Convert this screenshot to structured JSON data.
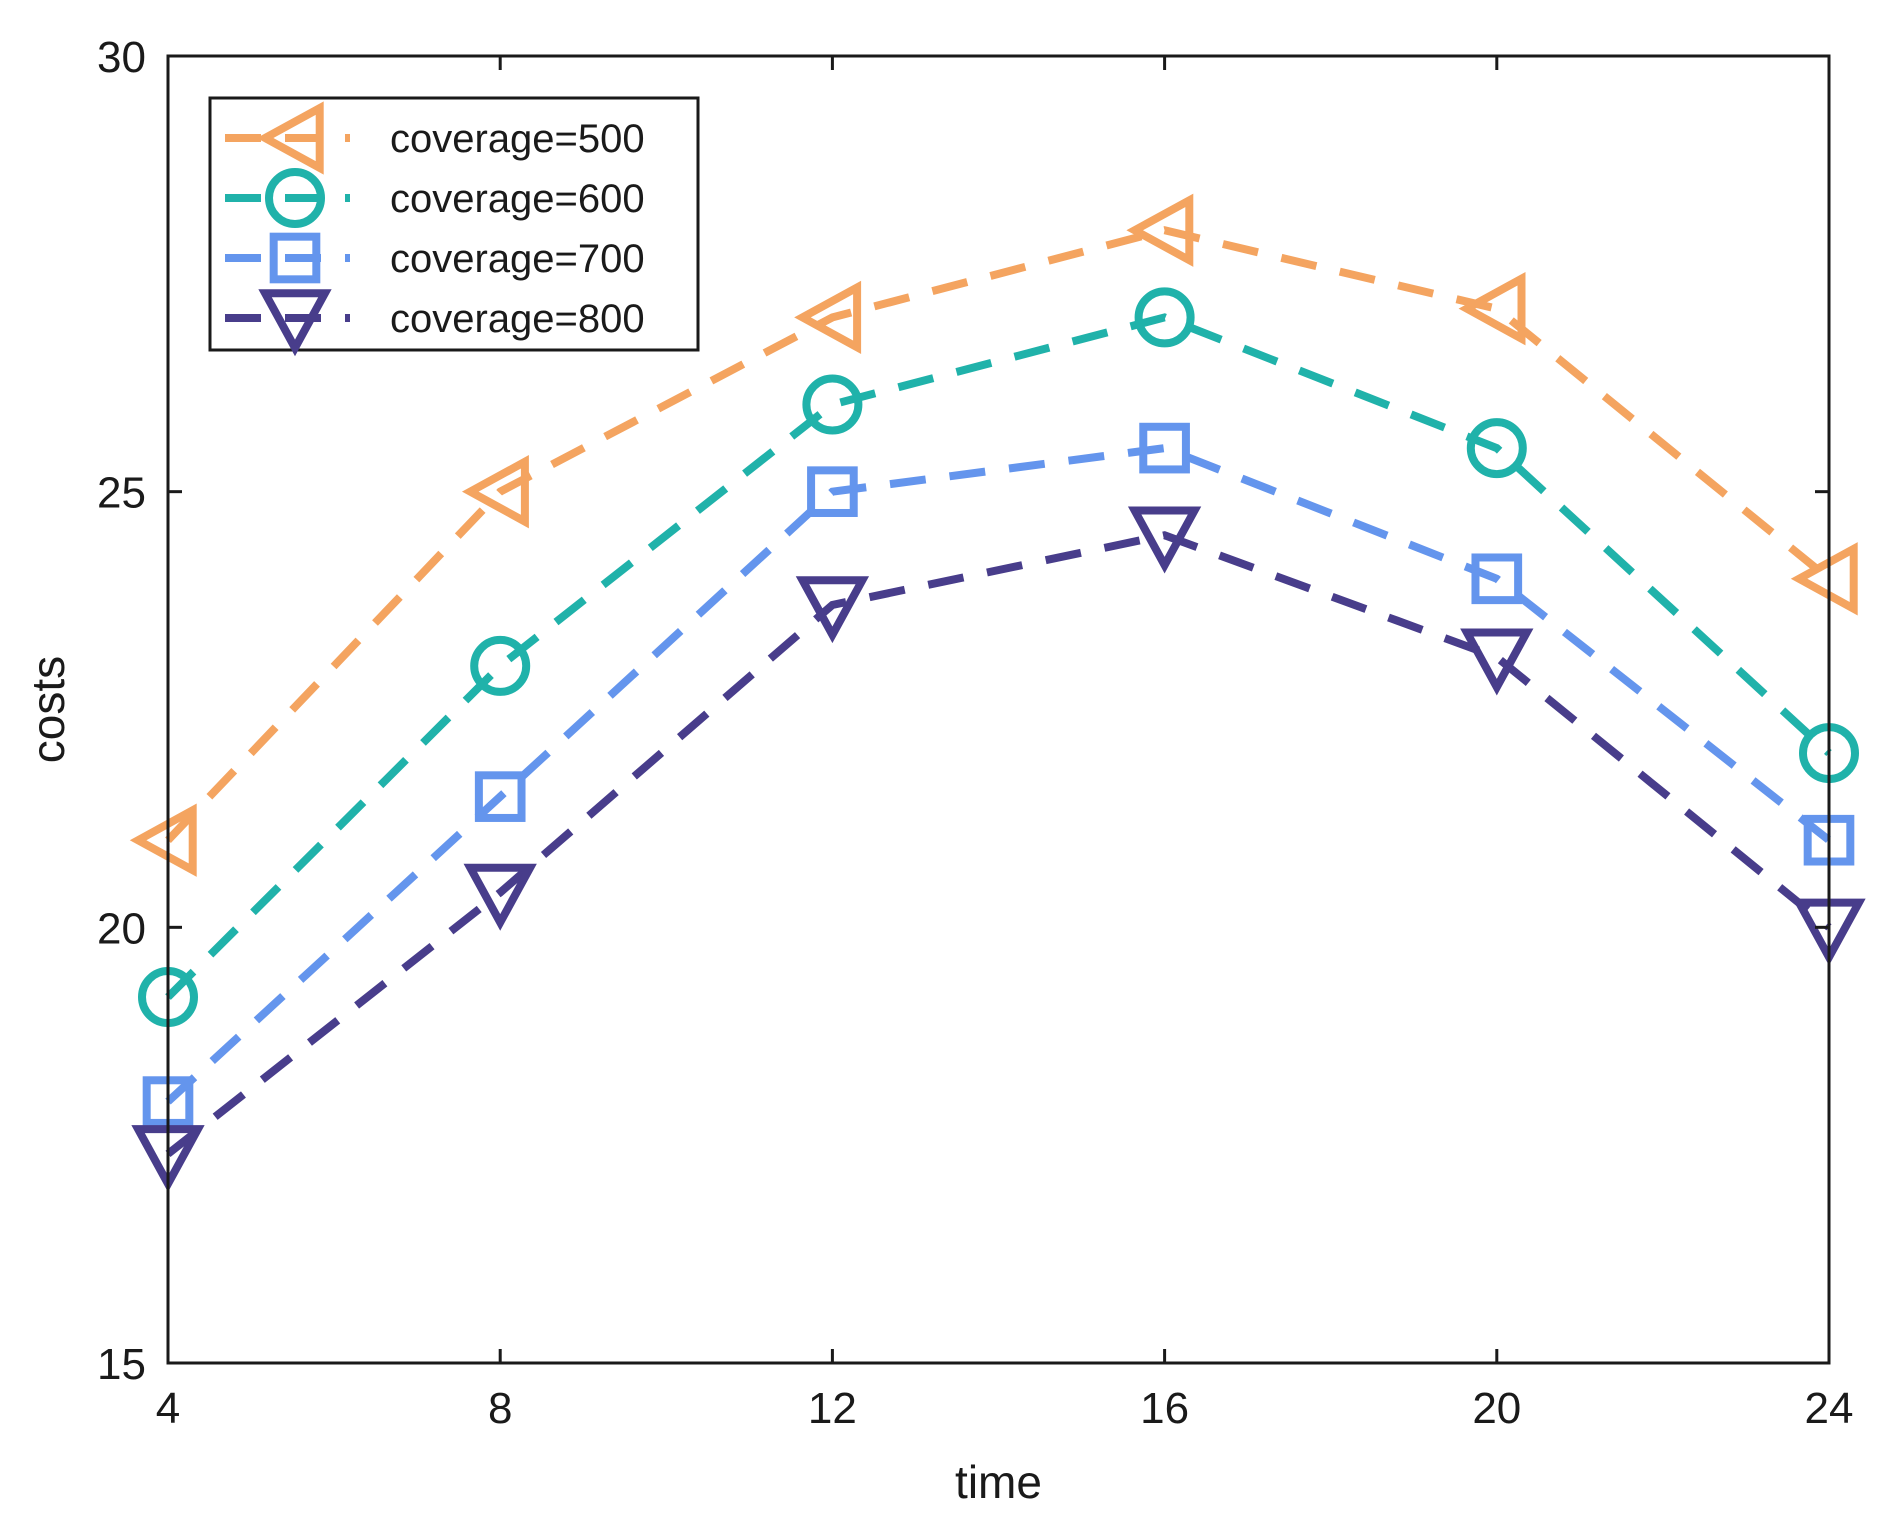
{
  "chart_data": {
    "type": "line",
    "title": "",
    "xlabel": "time",
    "ylabel": "costs",
    "xlim": [
      4,
      24
    ],
    "ylim": [
      15,
      30
    ],
    "xticks": [
      4,
      8,
      12,
      16,
      20,
      24
    ],
    "yticks": [
      15,
      20,
      25,
      30
    ],
    "grid": false,
    "legend_position": "top-left",
    "x": [
      4,
      8,
      12,
      16,
      20,
      24
    ],
    "series": [
      {
        "name": "coverage=500",
        "values": [
          21.0,
          25.0,
          27.0,
          28.0,
          27.1,
          24.0
        ],
        "color": "#F4A460",
        "marker": "triangle-left"
      },
      {
        "name": "coverage=600",
        "values": [
          19.2,
          23.0,
          26.0,
          27.0,
          25.5,
          22.0
        ],
        "color": "#20B2AA",
        "marker": "circle"
      },
      {
        "name": "coverage=700",
        "values": [
          18.0,
          21.5,
          25.0,
          25.5,
          24.0,
          21.0
        ],
        "color": "#6495ED",
        "marker": "square"
      },
      {
        "name": "coverage=800",
        "values": [
          17.4,
          20.4,
          23.7,
          24.5,
          23.1,
          20.0
        ],
        "color": "#483D8B",
        "marker": "triangle-down"
      }
    ]
  }
}
